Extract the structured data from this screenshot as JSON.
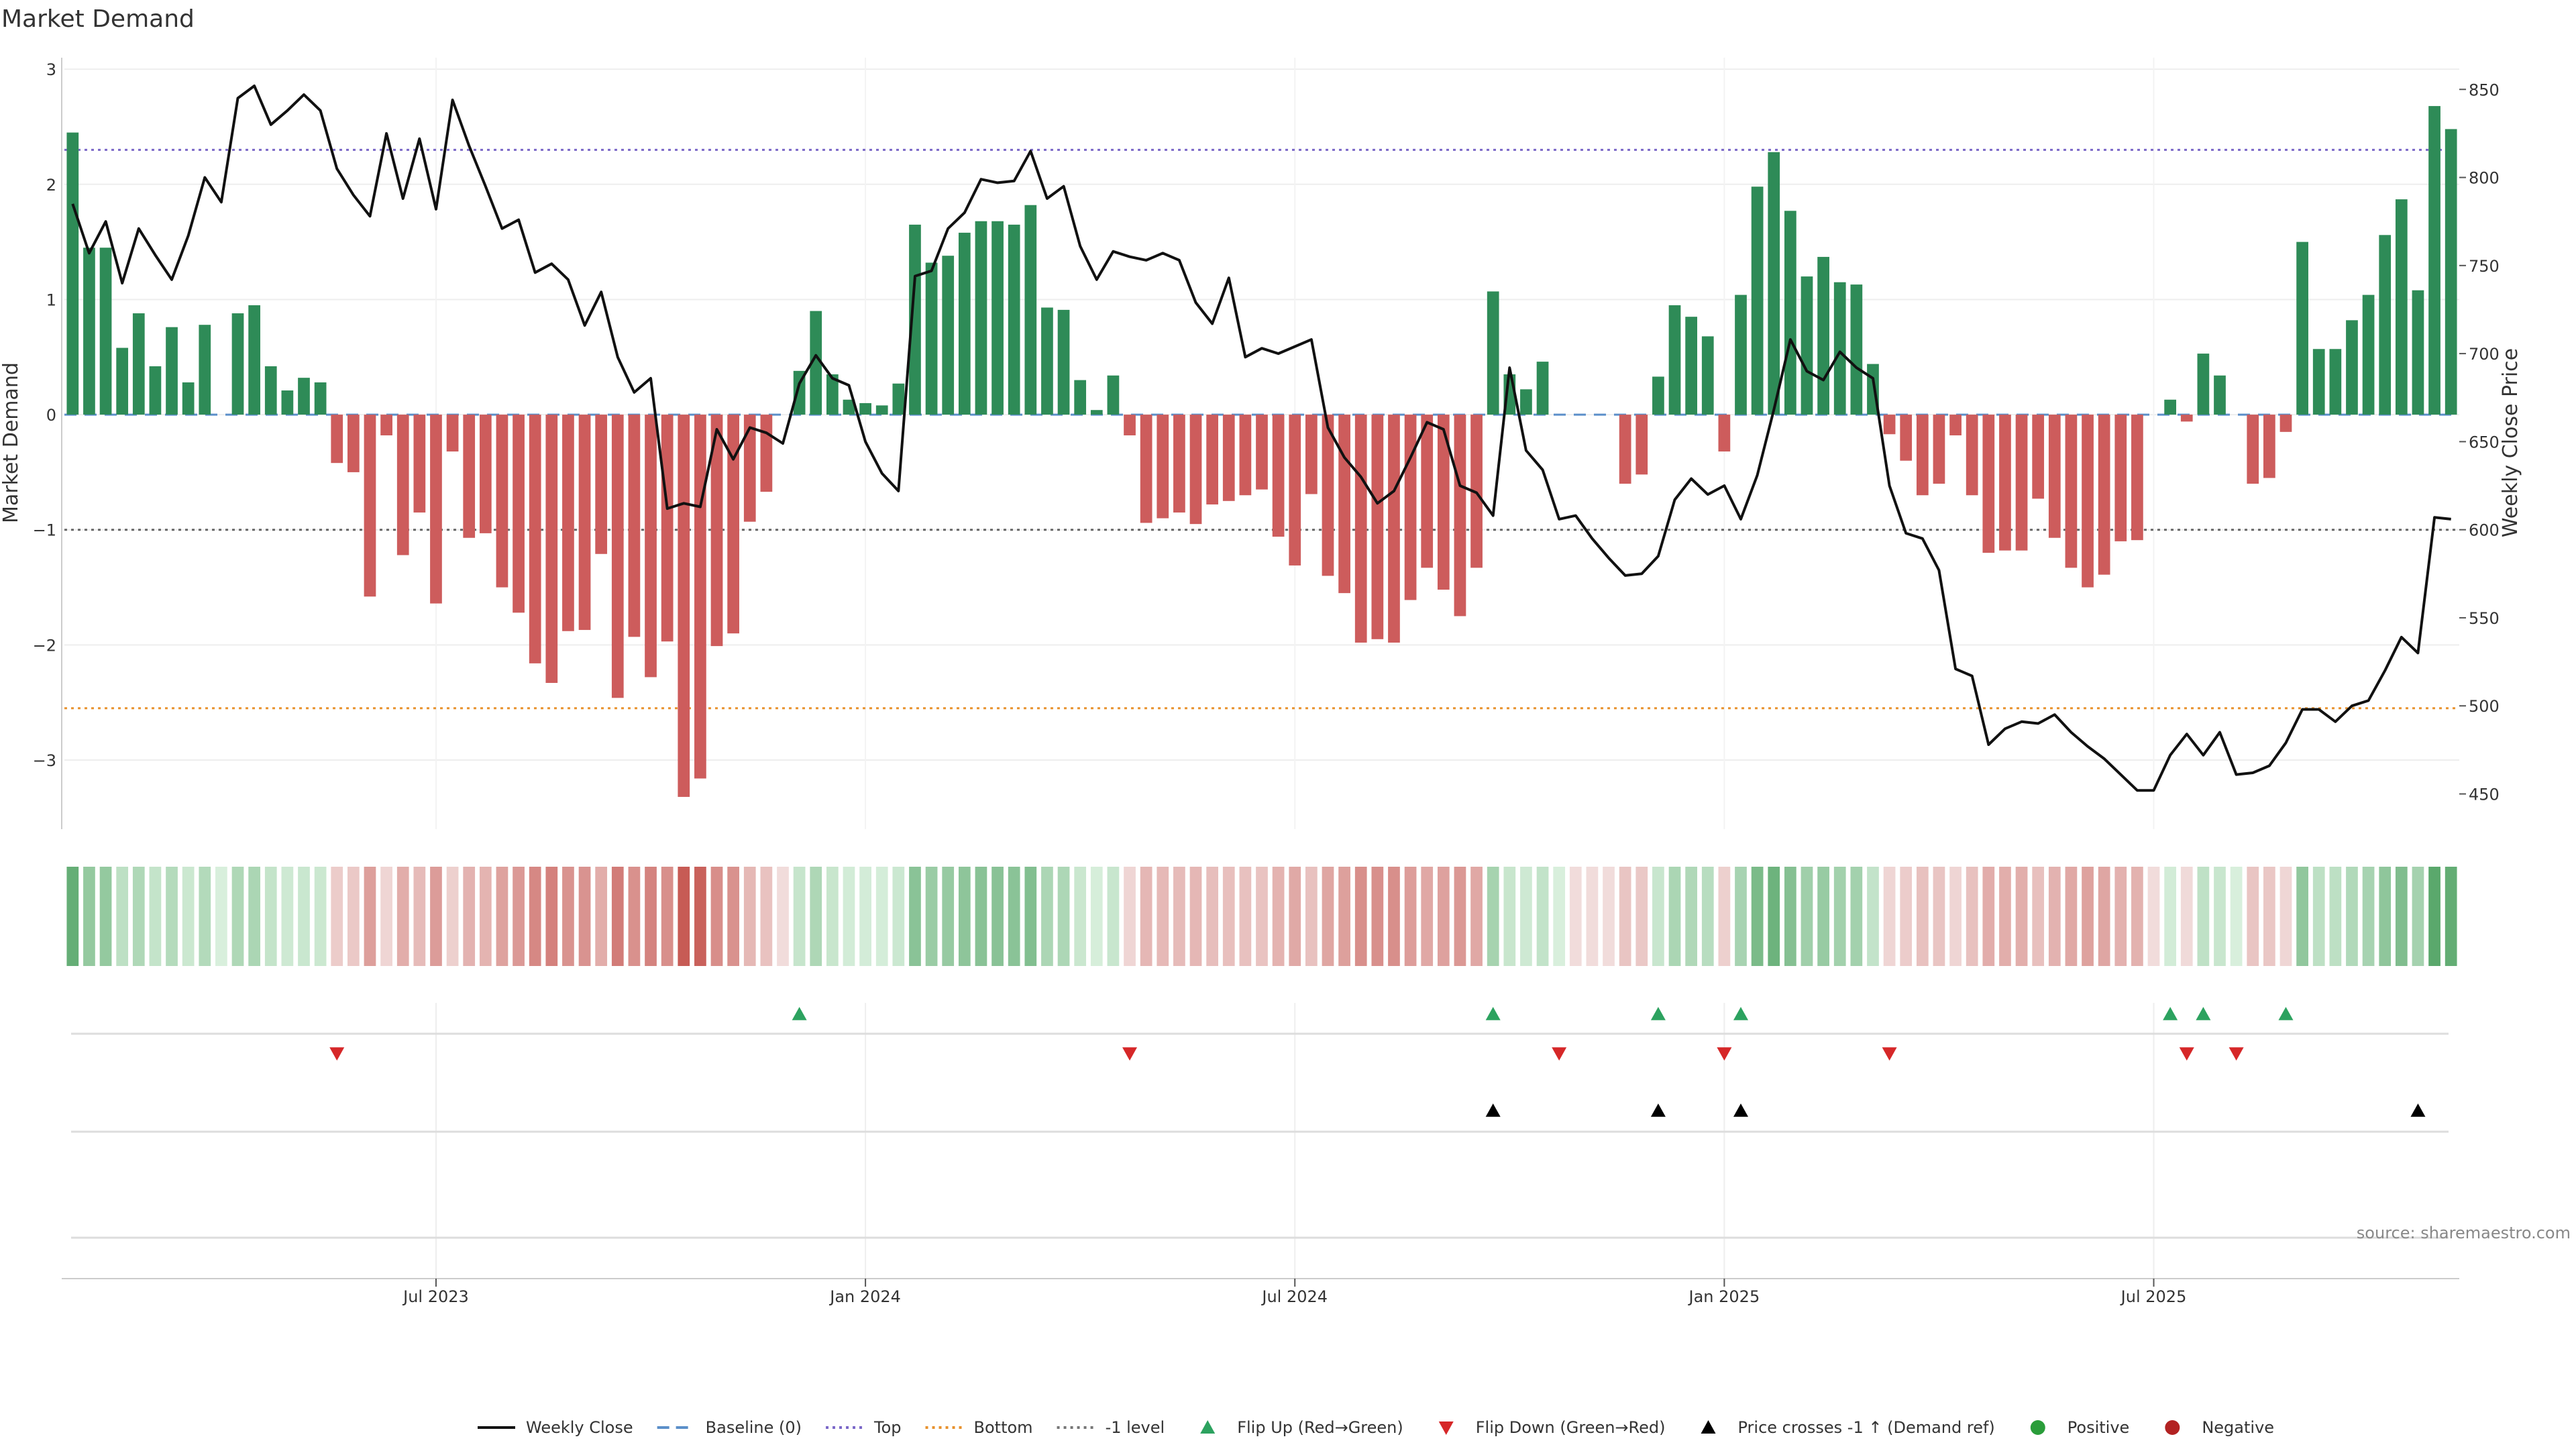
{
  "chart_data": {
    "type": "bar",
    "title": "Market Demand",
    "ylabel": "Market Demand",
    "y2label": "Weekly Close Price",
    "ylim": [
      -3.6,
      3.1
    ],
    "y2lim": [
      430,
      868
    ],
    "yticks": [
      3,
      2,
      1,
      0,
      -1,
      -2,
      -3
    ],
    "y2ticks": [
      850,
      800,
      750,
      700,
      650,
      600,
      550,
      500,
      450
    ],
    "ytick_labels": [
      "3",
      "2",
      "1",
      "0",
      "−1",
      "−2",
      "−3"
    ],
    "y2tick_labels": [
      "850",
      "800",
      "750",
      "700",
      "650",
      "600",
      "550",
      "500",
      "450"
    ],
    "levels": {
      "top": 2.3,
      "bottom": -2.55,
      "minus_one": -1.0,
      "baseline": 0
    },
    "x_start": "2023-01-16",
    "xtick_labels": [
      "Jul 2023",
      "Jan 2024",
      "Jul 2024",
      "Jan 2025",
      "Jul 2025"
    ],
    "xtick_weeks": [
      22,
      48,
      74,
      100,
      126
    ],
    "demand": [
      2.45,
      1.45,
      1.45,
      0.58,
      0.88,
      0.42,
      0.76,
      0.28,
      0.78,
      0.0,
      0.88,
      0.95,
      0.42,
      0.21,
      0.32,
      0.28,
      -0.42,
      -0.5,
      -1.58,
      -0.18,
      -1.22,
      -0.85,
      -1.64,
      -0.32,
      -1.07,
      -1.03,
      -1.5,
      -1.72,
      -2.16,
      -2.33,
      -1.88,
      -1.87,
      -1.21,
      -2.46,
      -1.93,
      -2.28,
      -1.97,
      -3.32,
      -3.16,
      -2.01,
      -1.9,
      -0.93,
      -0.67,
      0.0,
      0.38,
      0.9,
      0.35,
      0.13,
      0.1,
      0.08,
      0.27,
      1.65,
      1.32,
      1.38,
      1.58,
      1.68,
      1.68,
      1.65,
      1.82,
      0.93,
      0.91,
      0.3,
      0.04,
      0.34,
      -0.18,
      -0.94,
      -0.9,
      -0.85,
      -0.95,
      -0.78,
      -0.75,
      -0.7,
      -0.65,
      -1.06,
      -1.31,
      -0.69,
      -1.4,
      -1.55,
      -1.98,
      -1.95,
      -1.98,
      -1.61,
      -1.33,
      -1.52,
      -1.75,
      -1.33,
      1.07,
      0.35,
      0.22,
      0.46,
      0.0,
      0.0,
      0.0,
      0.0,
      -0.6,
      -0.52,
      0.33,
      0.95,
      0.85,
      0.68,
      -0.32,
      1.04,
      1.98,
      2.28,
      1.77,
      1.2,
      1.37,
      1.15,
      1.13,
      0.44,
      -0.17,
      -0.4,
      -0.7,
      -0.6,
      -0.18,
      -0.7,
      -1.2,
      -1.18,
      -1.18,
      -0.73,
      -1.07,
      -1.33,
      -1.5,
      -1.39,
      -1.1,
      -1.09,
      0.0,
      0.13,
      -0.06,
      0.53,
      0.34,
      0.0,
      -0.6,
      -0.55,
      -0.15,
      1.5,
      0.57,
      0.57,
      0.82,
      1.04,
      1.56,
      1.87,
      1.08,
      2.68,
      2.48
    ],
    "close": [
      785,
      757,
      775,
      740,
      771,
      756,
      742,
      767,
      800,
      786,
      845,
      852,
      830,
      838,
      847,
      838,
      805,
      790,
      778,
      825,
      788,
      822,
      782,
      844,
      818,
      795,
      771,
      776,
      746,
      751,
      742,
      716,
      735,
      698,
      678,
      686,
      612,
      615,
      613,
      657,
      640,
      658,
      655,
      649,
      683,
      699,
      686,
      682,
      650,
      632,
      622,
      744,
      747,
      771,
      780,
      799,
      797,
      798,
      815,
      788,
      795,
      761,
      742,
      758,
      755,
      753,
      757,
      753,
      729,
      717,
      743,
      698,
      703,
      700,
      704,
      708,
      658,
      641,
      630,
      615,
      622,
      641,
      661,
      657,
      625,
      621,
      608,
      692,
      645,
      634,
      606,
      608,
      595,
      584,
      574,
      575,
      585,
      617,
      629,
      620,
      625,
      606,
      631,
      668,
      708,
      690,
      685,
      701,
      692,
      686,
      625,
      598,
      595,
      577,
      521,
      517,
      478,
      487,
      491,
      490,
      495,
      485,
      477,
      470,
      461,
      452,
      452,
      472,
      484,
      472,
      485,
      461,
      462,
      466,
      479,
      498,
      498,
      491,
      500,
      503,
      520,
      539,
      530,
      607,
      606
    ],
    "flip_up_weeks": [
      44,
      86,
      96,
      101,
      127,
      129,
      134
    ],
    "flip_down_weeks": [
      16,
      64,
      90,
      100,
      110,
      128,
      131
    ],
    "price_cross_weeks": [
      86,
      96,
      101,
      142
    ],
    "legend": [
      {
        "label": "Weekly Close",
        "kind": "line",
        "color": "#111111"
      },
      {
        "label": "Baseline (0)",
        "kind": "dash",
        "color": "#5b8fc9"
      },
      {
        "label": "Top",
        "kind": "dot",
        "color": "#7b68c8"
      },
      {
        "label": "Bottom",
        "kind": "dot",
        "color": "#e8922e"
      },
      {
        "label": "-1 level",
        "kind": "dot",
        "color": "#777777"
      },
      {
        "label": "Flip Up (Red→Green)",
        "kind": "tri-up",
        "color": "#2ca25f"
      },
      {
        "label": "Flip Down (Green→Red)",
        "kind": "tri-down",
        "color": "#d62728"
      },
      {
        "label": "Price crosses -1 ↑ (Demand ref)",
        "kind": "tri-up",
        "color": "#000000"
      },
      {
        "label": "Positive",
        "kind": "circle",
        "color": "#2a9d3a"
      },
      {
        "label": "Negative",
        "kind": "circle",
        "color": "#b22222"
      }
    ],
    "source": "source: sharemaestro.com"
  },
  "colors": {
    "positive": "#2e8b57",
    "negative": "#cd5c5c",
    "heat_pos_light": "#d8efdc",
    "heat_pos_dark": "#5aa86c",
    "heat_neg_light": "#f1dcdb",
    "heat_neg_dark": "#c75b55",
    "grid": "#eeeeee",
    "axis": "#cccccc"
  }
}
